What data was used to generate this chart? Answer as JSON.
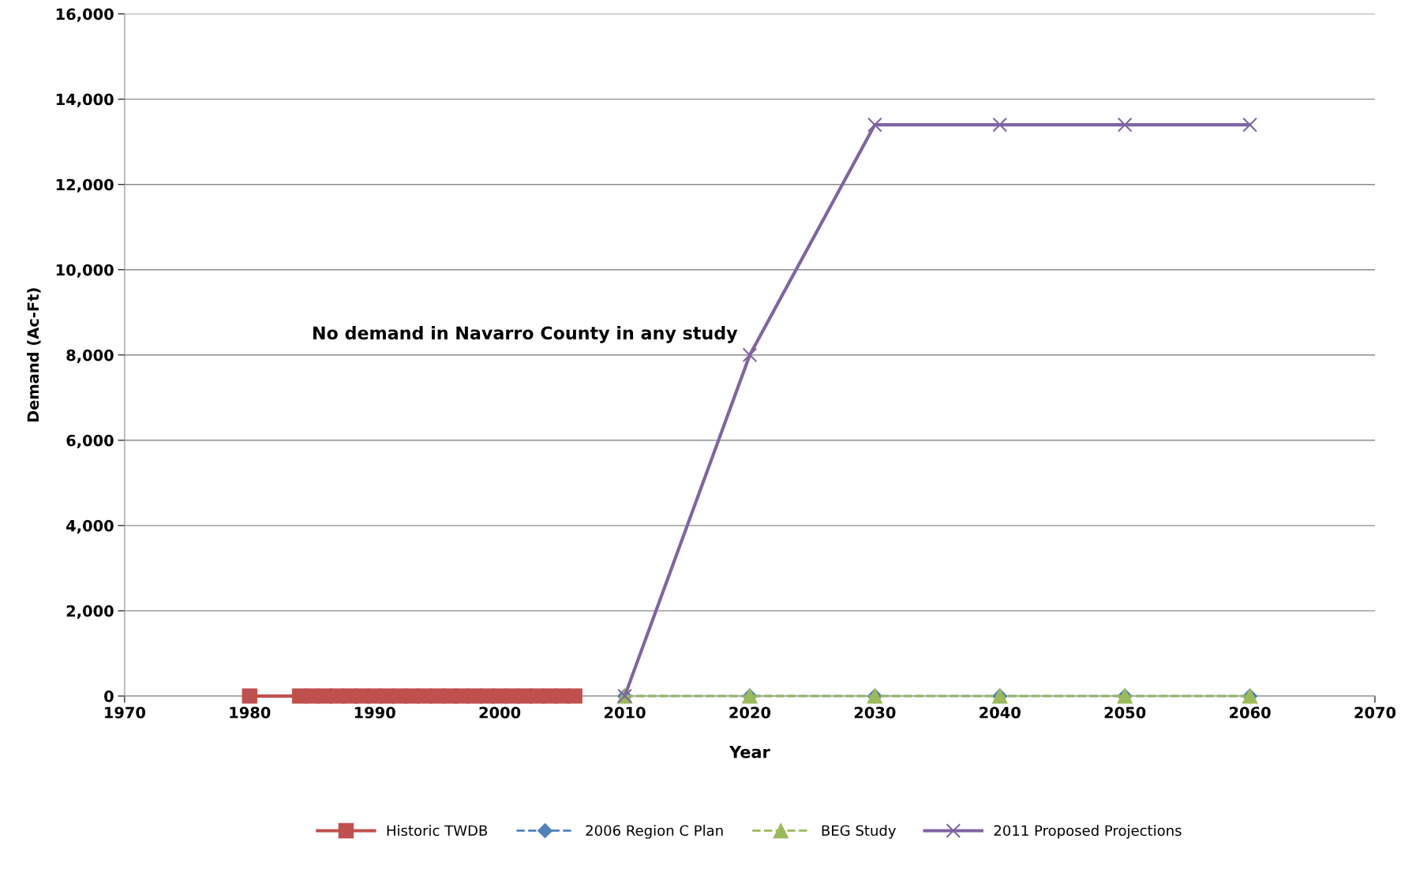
{
  "chart_data": {
    "type": "line",
    "xlabel": "Year",
    "ylabel": "Demand (Ac-Ft)",
    "annotations": [
      "No demand in Navarro County in any study"
    ],
    "xlim": [
      1970,
      2070
    ],
    "xticks": [
      1970,
      1980,
      1990,
      2000,
      2010,
      2020,
      2030,
      2040,
      2050,
      2060,
      2070
    ],
    "ylim": [
      0,
      16000
    ],
    "yticks": [
      {
        "value": 0,
        "label": "0"
      },
      {
        "value": 2000,
        "label": "2,000"
      },
      {
        "value": 4000,
        "label": "4,000"
      },
      {
        "value": 6000,
        "label": "6,000"
      },
      {
        "value": 8000,
        "label": "8,000"
      },
      {
        "value": 10000,
        "label": "10,000"
      },
      {
        "value": 12000,
        "label": "12,000"
      },
      {
        "value": 14000,
        "label": "14,000"
      },
      {
        "value": 16000,
        "label": "16,000"
      }
    ],
    "grid": "y",
    "legend": "bottom",
    "series": [
      {
        "name": "Historic TWDB",
        "color": "#c0504d",
        "marker": "square",
        "line_style": "solid",
        "x": [
          1980,
          1984,
          1985,
          1986,
          1987,
          1988,
          1989,
          1990,
          1991,
          1992,
          1993,
          1994,
          1995,
          1996,
          1997,
          1998,
          1999,
          2000,
          2001,
          2002,
          2003,
          2004,
          2005,
          2006
        ],
        "values": [
          0,
          0,
          0,
          0,
          0,
          0,
          0,
          0,
          0,
          0,
          0,
          0,
          0,
          0,
          0,
          0,
          0,
          0,
          0,
          0,
          0,
          0,
          0,
          0
        ]
      },
      {
        "name": "2006 Region C Plan",
        "color": "#4f81bd",
        "marker": "diamond",
        "line_style": "dashed",
        "x": [
          2010,
          2020,
          2030,
          2040,
          2050,
          2060
        ],
        "values": [
          0,
          0,
          0,
          0,
          0,
          0
        ]
      },
      {
        "name": "BEG Study",
        "color": "#9bbb59",
        "marker": "triangle",
        "line_style": "dashed",
        "x": [
          2010,
          2020,
          2030,
          2040,
          2050,
          2060
        ],
        "values": [
          0,
          0,
          0,
          0,
          0,
          0
        ]
      },
      {
        "name": "2011 Proposed Projections",
        "color": "#8064a2",
        "marker": "cross",
        "line_style": "solid",
        "x": [
          2010,
          2020,
          2030,
          2040,
          2050,
          2060
        ],
        "values": [
          0,
          8000,
          13400,
          13400,
          13400,
          13400
        ]
      }
    ]
  }
}
